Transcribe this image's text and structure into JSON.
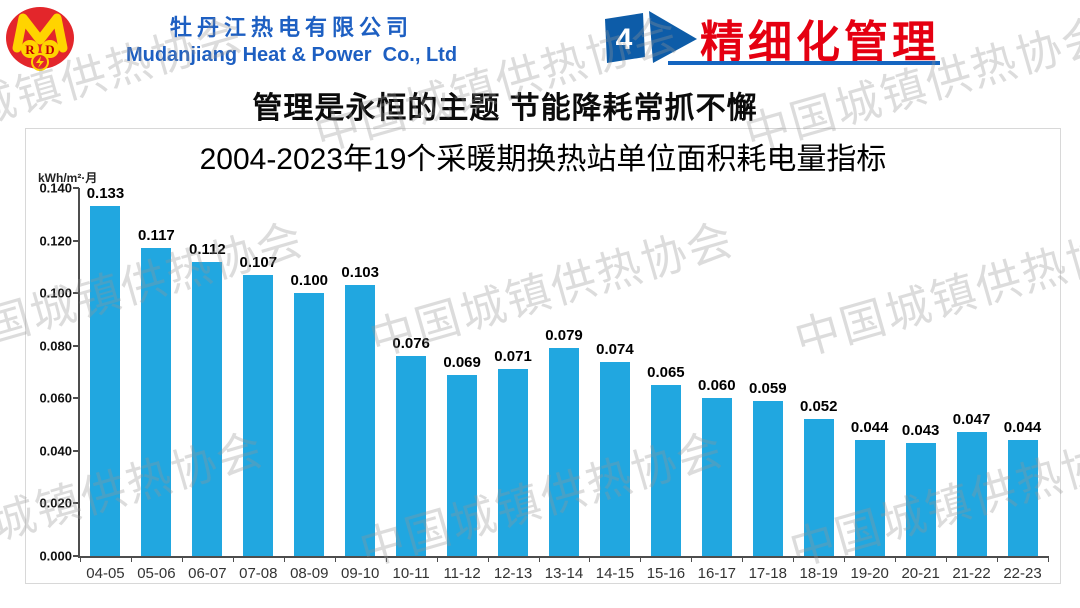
{
  "header": {
    "logo": {
      "monogram": "M",
      "letters": [
        "R",
        "D"
      ]
    },
    "company_cn": "牡丹江热电有限公司",
    "company_en": "Mudanjiang Heat & Power  Co., Ltd",
    "section_number": "4",
    "section_title": "精细化管理"
  },
  "subtitle": "管理是永恒的主题 节能降耗常抓不懈",
  "watermark": {
    "text": "中国城镇供热协会"
  },
  "chart_data": {
    "type": "bar",
    "title": "2004-2023年19个采暖期换热站单位面积耗电量指标",
    "unit_label": "kWh/m²·月",
    "categories": [
      "04-05",
      "05-06",
      "06-07",
      "07-08",
      "08-09",
      "09-10",
      "10-11",
      "11-12",
      "12-13",
      "13-14",
      "14-15",
      "15-16",
      "16-17",
      "17-18",
      "18-19",
      "19-20",
      "20-21",
      "21-22",
      "22-23"
    ],
    "values": [
      0.133,
      0.117,
      0.112,
      0.107,
      0.1,
      0.103,
      0.076,
      0.069,
      0.071,
      0.079,
      0.074,
      0.065,
      0.06,
      0.059,
      0.052,
      0.044,
      0.043,
      0.047,
      0.044
    ],
    "value_labels": [
      "0.133",
      "0.117",
      "0.112",
      "0.107",
      "0.100",
      "0.103",
      "0.076",
      "0.069",
      "0.071",
      "0.079",
      "0.074",
      "0.065",
      "0.060",
      "0.059",
      "0.052",
      "0.044",
      "0.043",
      "0.047",
      "0.044"
    ],
    "yticks": [
      "0.140",
      "0.120",
      "0.100",
      "0.080",
      "0.060",
      "0.040",
      "0.020",
      "0.000"
    ],
    "ylim": [
      0,
      0.14
    ],
    "xlabel": "",
    "ylabel": "kWh/m²·月",
    "grid": false,
    "legend": false,
    "bar_color": "#21a7e0"
  },
  "colors": {
    "bar": "#21a7e0",
    "accent_red": "#e50011",
    "brand_blue": "#1d5fc2",
    "marker_blue": "#0d5ca8",
    "underline_blue": "#1565c0",
    "axis": "#4d4d4d",
    "logo_red": "#e3262b",
    "logo_yellow": "#ffd400"
  }
}
